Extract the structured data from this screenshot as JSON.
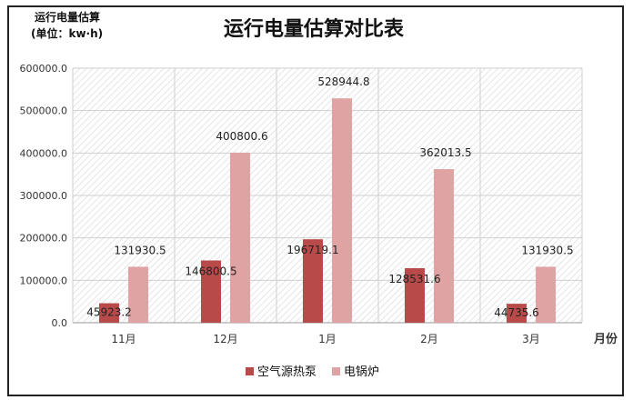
{
  "chart_data": {
    "type": "bar",
    "title": "运行电量估算对比表",
    "corner_label_1": "运行电量估算",
    "corner_label_2": "(单位：kw·h)",
    "xlabel": "月份",
    "ylabel": "",
    "categories": [
      "11月",
      "12月",
      "1月",
      "2月",
      "3月"
    ],
    "series": [
      {
        "name": "空气源热泵",
        "values": [
          45923.2,
          146800.5,
          196719.1,
          128531.6,
          44735.6
        ],
        "labels": [
          "45923.2",
          "146800.5",
          "196719.1",
          "128531.6",
          "44735.6"
        ],
        "color": "#b84a4a"
      },
      {
        "name": "电锅炉",
        "values": [
          131930.5,
          400800.6,
          528944.8,
          362013.5,
          131930.5
        ],
        "labels": [
          "131930.5",
          "400800.6",
          "528944.8",
          "362013.5",
          "131930.5"
        ],
        "color": "#e0a3a3"
      }
    ],
    "ylim": [
      0,
      600000
    ],
    "yticks": [
      0,
      100000,
      200000,
      300000,
      400000,
      500000,
      600000
    ],
    "ytick_labels": [
      "0.0",
      "100000.0",
      "200000.0",
      "300000.0",
      "400000.0",
      "500000.0",
      "600000.0"
    ],
    "grid": true,
    "legend_position": "bottom"
  }
}
